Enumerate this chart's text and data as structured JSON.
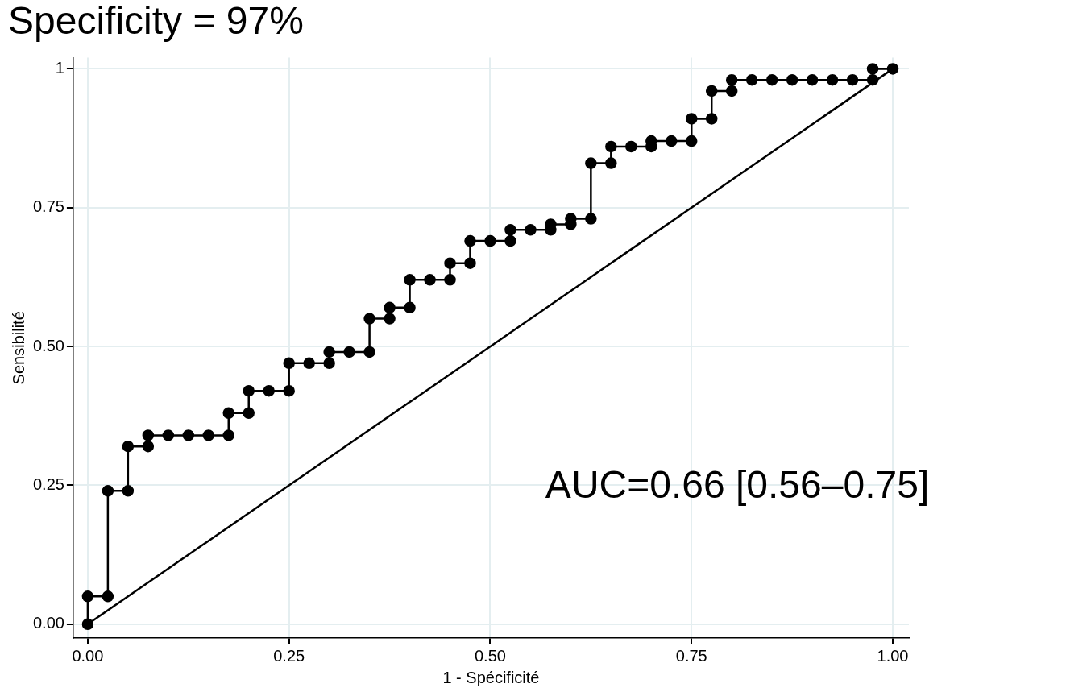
{
  "chart_data": {
    "type": "line",
    "title": "Specificity = 97%",
    "xlabel": "1 - Spécificité",
    "ylabel": "Sensibilité",
    "annotations": [
      "AUC=0.66 [0.56–0.75]"
    ],
    "series": [
      {
        "type": "line",
        "color": "#000000",
        "marker": "circle",
        "x": [
          0,
          0,
          0.025,
          0.025,
          0.05,
          0.05,
          0.075,
          0.075,
          0.1,
          0.125,
          0.15,
          0.175,
          0.175,
          0.2,
          0.2,
          0.225,
          0.25,
          0.25,
          0.275,
          0.3,
          0.3,
          0.325,
          0.35,
          0.35,
          0.375,
          0.375,
          0.4,
          0.4,
          0.425,
          0.45,
          0.45,
          0.475,
          0.475,
          0.5,
          0.525,
          0.525,
          0.55,
          0.575,
          0.575,
          0.6,
          0.6,
          0.625,
          0.625,
          0.65,
          0.65,
          0.675,
          0.7,
          0.7,
          0.725,
          0.75,
          0.75,
          0.775,
          0.775,
          0.8,
          0.8,
          0.825,
          0.85,
          0.875,
          0.9,
          0.925,
          0.95,
          0.975,
          0.975,
          1
        ],
        "values": [
          0,
          0.05,
          0.05,
          0.24,
          0.24,
          0.32,
          0.32,
          0.34,
          0.34,
          0.34,
          0.34,
          0.34,
          0.38,
          0.38,
          0.42,
          0.42,
          0.42,
          0.47,
          0.47,
          0.47,
          0.49,
          0.49,
          0.49,
          0.55,
          0.55,
          0.57,
          0.57,
          0.62,
          0.62,
          0.62,
          0.65,
          0.65,
          0.69,
          0.69,
          0.69,
          0.71,
          0.71,
          0.71,
          0.72,
          0.72,
          0.73,
          0.73,
          0.83,
          0.83,
          0.86,
          0.86,
          0.86,
          0.87,
          0.87,
          0.87,
          0.91,
          0.91,
          0.96,
          0.96,
          0.98,
          0.98,
          0.98,
          0.98,
          0.98,
          0.98,
          0.98,
          0.98,
          1,
          1
        ]
      },
      {
        "type": "line",
        "color": "#000000",
        "marker": "none",
        "x": [
          0,
          1
        ],
        "values": [
          0,
          1
        ]
      }
    ],
    "xlim": [
      -0.018,
      1.02
    ],
    "ylim": [
      -0.025,
      1.02
    ],
    "xticks": [
      {
        "value": 0,
        "label": "0.00"
      },
      {
        "value": 0.25,
        "label": "0.25"
      },
      {
        "value": 0.5,
        "label": "0.50"
      },
      {
        "value": 0.75,
        "label": "0.75"
      },
      {
        "value": 1,
        "label": "1.00"
      }
    ],
    "yticks": [
      {
        "value": 0,
        "label": "0.00"
      },
      {
        "value": 0.25,
        "label": "0.25"
      },
      {
        "value": 0.5,
        "label": "0.50"
      },
      {
        "value": 0.75,
        "label": "0.75"
      },
      {
        "value": 1,
        "label": "1"
      }
    ],
    "grid": true,
    "legend": false
  }
}
